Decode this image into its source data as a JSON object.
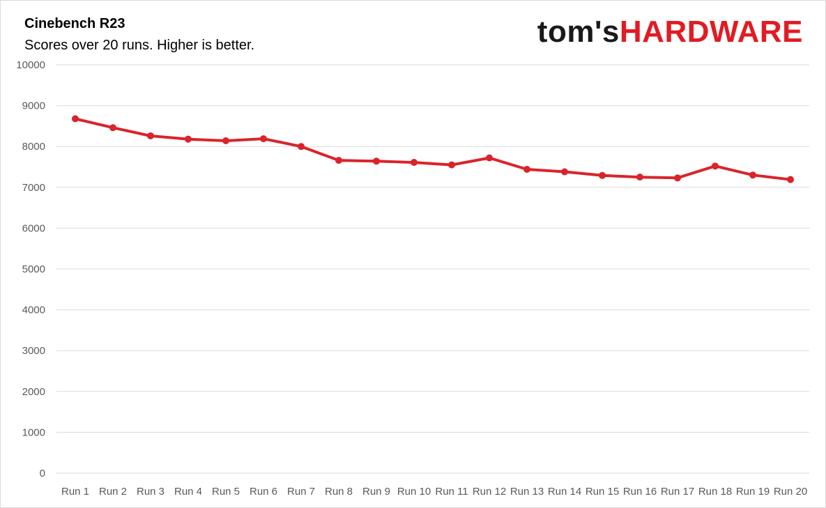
{
  "header": {
    "title": "Cinebench R23",
    "subtitle": "Scores over 20 runs. Higher is better."
  },
  "logo": {
    "part1": "tom's",
    "part2": "HARDWARE"
  },
  "colors": {
    "series": "#d9242a",
    "grid": "#d9d9d9",
    "logo_dark": "#1a1a1a",
    "logo_red": "#e21b23"
  },
  "chart_data": {
    "type": "line",
    "title": "Cinebench R23",
    "subtitle": "Scores over 20 runs. Higher is better.",
    "categories": [
      "Run 1",
      "Run 2",
      "Run 3",
      "Run 4",
      "Run 5",
      "Run 6",
      "Run 7",
      "Run 8",
      "Run 9",
      "Run 10",
      "Run 11",
      "Run 12",
      "Run 13",
      "Run 14",
      "Run 15",
      "Run 16",
      "Run 17",
      "Run 18",
      "Run 19",
      "Run 20"
    ],
    "series": [
      {
        "values": [
          8680,
          8460,
          8260,
          8180,
          8140,
          8190,
          8000,
          7660,
          7640,
          7610,
          7550,
          7720,
          7440,
          7380,
          7290,
          7250,
          7230,
          7520,
          7300,
          7190
        ]
      }
    ],
    "ylim": [
      0,
      10000
    ],
    "yticks": [
      0,
      1000,
      2000,
      3000,
      4000,
      5000,
      6000,
      7000,
      8000,
      9000,
      10000
    ],
    "grid": true,
    "legend": "none"
  }
}
